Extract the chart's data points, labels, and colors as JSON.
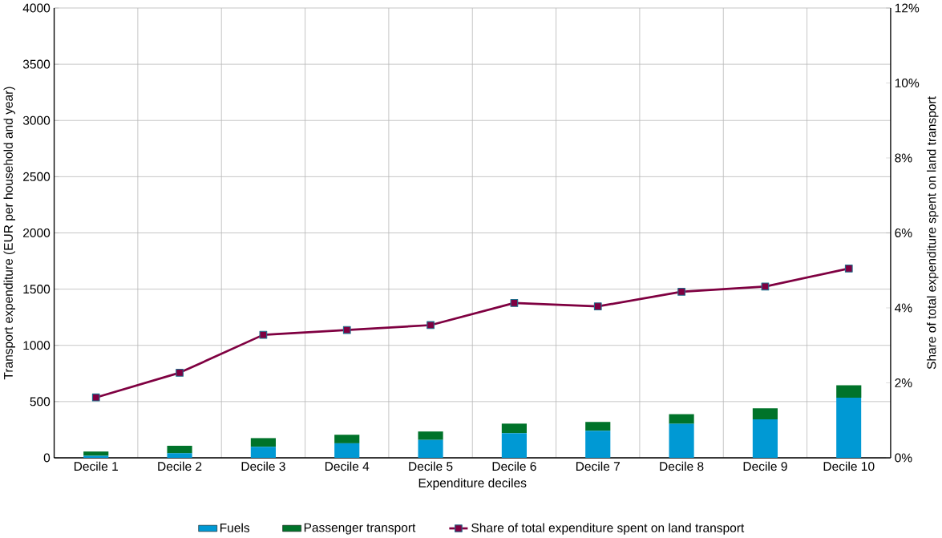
{
  "chart_data": {
    "type": "bar",
    "stacked": true,
    "xlabel": "Expenditure deciles",
    "ylabel": "Transport expenditure (EUR per household and year)",
    "y2label": "Share of total expenditure spent on land transport",
    "categories": [
      "Decile 1",
      "Decile 2",
      "Decile 3",
      "Decile 4",
      "Decile 5",
      "Decile 6",
      "Decile 7",
      "Decile 8",
      "Decile 9",
      "Decile 10"
    ],
    "series": [
      {
        "name": "Fuels",
        "color": "#0099d4",
        "values": [
          18,
          40,
          98,
          129,
          159,
          219,
          241,
          302,
          342,
          534
        ]
      },
      {
        "name": "Passenger transport",
        "color": "#00732a",
        "values": [
          38,
          67,
          77,
          76,
          75,
          85,
          78,
          86,
          98,
          111
        ]
      },
      {
        "name": "Share of total expenditure spent on land transport",
        "type": "line",
        "axis": "y2",
        "marker": "square",
        "color": "#7f0041",
        "values": [
          1.61,
          2.27,
          3.28,
          3.41,
          3.54,
          4.13,
          4.04,
          4.43,
          4.57,
          5.05
        ]
      }
    ],
    "ylim": [
      0,
      4000
    ],
    "yticks": [
      0,
      500,
      1000,
      1500,
      2000,
      2500,
      3000,
      3500,
      4000
    ],
    "y2lim": [
      0,
      12
    ],
    "y2ticks": [
      {
        "value": 0,
        "label": "0%"
      },
      {
        "value": 2,
        "label": "2%"
      },
      {
        "value": 4,
        "label": "4%"
      },
      {
        "value": 6,
        "label": "6%"
      },
      {
        "value": 8,
        "label": "8%"
      },
      {
        "value": 10,
        "label": "10%"
      },
      {
        "value": 12,
        "label": "12%"
      }
    ],
    "grid": true,
    "legend": "bottom"
  }
}
